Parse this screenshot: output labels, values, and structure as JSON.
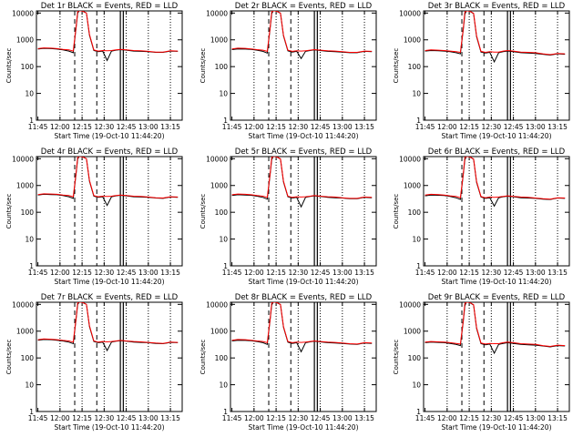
{
  "figure": {
    "panel_titles": [
      "Det 1r BLACK = Events, RED = LLD",
      "Det 2r BLACK = Events, RED = LLD",
      "Det 3r BLACK = Events, RED = LLD",
      "Det 4r BLACK = Events, RED = LLD",
      "Det 5r BLACK = Events, RED = LLD",
      "Det 6r BLACK = Events, RED = LLD",
      "Det 7r BLACK = Events, RED = LLD",
      "Det 8r BLACK = Events, RED = LLD",
      "Det 9r BLACK = Events, RED = LLD"
    ],
    "xlabel": "Start Time (19-Oct-10 11:44:20)",
    "ylabel": "Counts/sec",
    "x_ticks": [
      "11:45",
      "12:00",
      "12:15",
      "12:30",
      "12:45",
      "13:00",
      "13:15"
    ],
    "y_ticks": [
      "1",
      "10",
      "100",
      "1000",
      "10000"
    ]
  },
  "chart_data": {
    "type": "line",
    "layout": "3x3 grid of panels",
    "x_unit": "time (HH:MM)",
    "xlim": [
      "11:44",
      "13:23"
    ],
    "ylim": [
      1,
      12000
    ],
    "y_scale": "log",
    "grid": false,
    "series_colors": {
      "events": "#000000",
      "lld": "#ff0000"
    },
    "dashed_markers": [
      "12:10",
      "12:25"
    ],
    "dotted_markers": [
      "12:00",
      "12:15",
      "12:30",
      "12:45",
      "13:00",
      "13:15"
    ],
    "solid_markers": [
      "12:41",
      "12:43"
    ],
    "panels": [
      {
        "detector": "Det 1r",
        "x": [
          "11:45",
          "11:49",
          "11:54",
          "11:58",
          "12:02",
          "12:06",
          "12:09",
          "12:11",
          "12:12",
          "12:13",
          "12:15",
          "12:18",
          "12:20",
          "12:23",
          "12:26",
          "12:29",
          "12:32",
          "12:35",
          "12:38",
          "12:41",
          "12:45",
          "12:50",
          "12:55",
          "13:00",
          "13:05",
          "13:10",
          "13:15",
          "13:20"
        ],
        "events": [
          450,
          480,
          470,
          450,
          420,
          380,
          330,
          3000,
          10000,
          12000,
          12000,
          10000,
          1500,
          400,
          360,
          380,
          170,
          380,
          410,
          430,
          410,
          380,
          370,
          360,
          340,
          340,
          380,
          370
        ],
        "lld": [
          470,
          500,
          490,
          470,
          440,
          420,
          380,
          3200,
          12000,
          12000,
          12000,
          10000,
          1600,
          420,
          380,
          400,
          390,
          400,
          420,
          440,
          420,
          400,
          390,
          370,
          350,
          350,
          390,
          380
        ]
      },
      {
        "detector": "Det 2r",
        "x": [
          "11:45",
          "11:49",
          "11:54",
          "11:58",
          "12:02",
          "12:06",
          "12:09",
          "12:11",
          "12:12",
          "12:13",
          "12:15",
          "12:18",
          "12:20",
          "12:23",
          "12:26",
          "12:29",
          "12:32",
          "12:35",
          "12:38",
          "12:41",
          "12:45",
          "12:50",
          "12:55",
          "13:00",
          "13:05",
          "13:10",
          "13:15",
          "13:20"
        ],
        "events": [
          430,
          460,
          450,
          440,
          410,
          370,
          320,
          2800,
          9500,
          12000,
          12000,
          9800,
          1400,
          390,
          350,
          370,
          200,
          370,
          400,
          420,
          400,
          370,
          360,
          350,
          330,
          330,
          370,
          360
        ],
        "lld": [
          460,
          490,
          480,
          460,
          430,
          410,
          370,
          3000,
          11500,
          12000,
          12000,
          10000,
          1500,
          410,
          370,
          390,
          380,
          390,
          410,
          430,
          410,
          390,
          380,
          360,
          340,
          340,
          380,
          370
        ]
      },
      {
        "detector": "Det 3r",
        "x": [
          "11:45",
          "11:49",
          "11:54",
          "11:58",
          "12:02",
          "12:06",
          "12:09",
          "12:11",
          "12:12",
          "12:13",
          "12:15",
          "12:18",
          "12:20",
          "12:23",
          "12:26",
          "12:29",
          "12:32",
          "12:35",
          "12:38",
          "12:41",
          "12:45",
          "12:50",
          "12:55",
          "13:00",
          "13:05",
          "13:10",
          "13:15",
          "13:20"
        ],
        "events": [
          380,
          400,
          390,
          380,
          360,
          330,
          300,
          2500,
          9000,
          12000,
          12000,
          9500,
          1300,
          350,
          320,
          340,
          150,
          330,
          360,
          380,
          360,
          330,
          320,
          310,
          290,
          270,
          300,
          290
        ],
        "lld": [
          400,
          420,
          410,
          400,
          380,
          360,
          340,
          2700,
          11000,
          12000,
          12000,
          9800,
          1400,
          370,
          340,
          360,
          350,
          350,
          380,
          400,
          380,
          350,
          340,
          330,
          300,
          280,
          310,
          300
        ]
      },
      {
        "detector": "Det 4r",
        "x": [
          "11:45",
          "11:49",
          "11:54",
          "11:58",
          "12:02",
          "12:06",
          "12:09",
          "12:11",
          "12:12",
          "12:13",
          "12:15",
          "12:18",
          "12:20",
          "12:23",
          "12:26",
          "12:29",
          "12:32",
          "12:35",
          "12:38",
          "12:41",
          "12:45",
          "12:50",
          "12:55",
          "13:00",
          "13:05",
          "13:10",
          "13:15",
          "13:20"
        ],
        "events": [
          440,
          470,
          460,
          450,
          420,
          380,
          330,
          2900,
          9800,
          12000,
          12000,
          10000,
          1450,
          400,
          360,
          380,
          180,
          380,
          410,
          430,
          410,
          380,
          370,
          360,
          340,
          330,
          370,
          360
        ],
        "lld": [
          460,
          490,
          480,
          470,
          440,
          420,
          380,
          3100,
          11800,
          12000,
          12000,
          10000,
          1550,
          420,
          380,
          400,
          390,
          400,
          420,
          440,
          420,
          400,
          390,
          370,
          350,
          340,
          380,
          370
        ]
      },
      {
        "detector": "Det 5r",
        "x": [
          "11:45",
          "11:49",
          "11:54",
          "11:58",
          "12:02",
          "12:06",
          "12:09",
          "12:11",
          "12:12",
          "12:13",
          "12:15",
          "12:18",
          "12:20",
          "12:23",
          "12:26",
          "12:29",
          "12:32",
          "12:35",
          "12:38",
          "12:41",
          "12:45",
          "12:50",
          "12:55",
          "13:00",
          "13:05",
          "13:10",
          "13:15",
          "13:20"
        ],
        "events": [
          420,
          450,
          440,
          430,
          400,
          360,
          310,
          2700,
          9300,
          12000,
          12000,
          9700,
          1350,
          380,
          340,
          360,
          160,
          360,
          390,
          410,
          390,
          360,
          350,
          340,
          320,
          320,
          360,
          350
        ],
        "lld": [
          450,
          480,
          470,
          450,
          420,
          400,
          360,
          2900,
          11300,
          12000,
          12000,
          9900,
          1450,
          400,
          360,
          380,
          370,
          380,
          400,
          420,
          400,
          380,
          370,
          350,
          330,
          330,
          370,
          360
        ]
      },
      {
        "detector": "Det 6r",
        "x": [
          "11:45",
          "11:49",
          "11:54",
          "11:58",
          "12:02",
          "12:06",
          "12:09",
          "12:11",
          "12:12",
          "12:13",
          "12:15",
          "12:18",
          "12:20",
          "12:23",
          "12:26",
          "12:29",
          "12:32",
          "12:35",
          "12:38",
          "12:41",
          "12:45",
          "12:50",
          "12:55",
          "13:00",
          "13:05",
          "13:10",
          "13:15",
          "13:20"
        ],
        "events": [
          410,
          440,
          430,
          420,
          390,
          350,
          300,
          2600,
          9200,
          12000,
          12000,
          9600,
          1300,
          370,
          330,
          350,
          170,
          350,
          380,
          400,
          380,
          350,
          340,
          330,
          310,
          300,
          340,
          330
        ],
        "lld": [
          440,
          470,
          460,
          440,
          410,
          390,
          350,
          2800,
          11200,
          12000,
          12000,
          9800,
          1400,
          390,
          350,
          370,
          360,
          370,
          390,
          410,
          390,
          370,
          360,
          340,
          320,
          310,
          350,
          340
        ]
      },
      {
        "detector": "Det 7r",
        "x": [
          "11:45",
          "11:49",
          "11:54",
          "11:58",
          "12:02",
          "12:06",
          "12:09",
          "12:11",
          "12:12",
          "12:13",
          "12:15",
          "12:18",
          "12:20",
          "12:23",
          "12:26",
          "12:29",
          "12:32",
          "12:35",
          "12:38",
          "12:41",
          "12:45",
          "12:50",
          "12:55",
          "13:00",
          "13:05",
          "13:10",
          "13:15",
          "13:20"
        ],
        "events": [
          460,
          490,
          480,
          460,
          430,
          390,
          340,
          3000,
          10000,
          12000,
          12000,
          10000,
          1500,
          410,
          370,
          390,
          190,
          390,
          420,
          440,
          420,
          390,
          380,
          370,
          350,
          340,
          380,
          370
        ],
        "lld": [
          480,
          510,
          500,
          480,
          450,
          430,
          390,
          3200,
          12000,
          12000,
          12000,
          10000,
          1600,
          430,
          390,
          410,
          400,
          410,
          430,
          450,
          430,
          410,
          400,
          380,
          360,
          350,
          390,
          380
        ]
      },
      {
        "detector": "Det 8r",
        "x": [
          "11:45",
          "11:49",
          "11:54",
          "11:58",
          "12:02",
          "12:06",
          "12:09",
          "12:11",
          "12:12",
          "12:13",
          "12:15",
          "12:18",
          "12:20",
          "12:23",
          "12:26",
          "12:29",
          "12:32",
          "12:35",
          "12:38",
          "12:41",
          "12:45",
          "12:50",
          "12:55",
          "13:00",
          "13:05",
          "13:10",
          "13:15",
          "13:20"
        ],
        "events": [
          430,
          460,
          450,
          440,
          410,
          370,
          320,
          2800,
          9500,
          12000,
          12000,
          9800,
          1400,
          390,
          350,
          370,
          170,
          370,
          400,
          420,
          400,
          370,
          360,
          350,
          330,
          320,
          360,
          350
        ],
        "lld": [
          460,
          490,
          480,
          460,
          430,
          410,
          370,
          3000,
          11500,
          12000,
          12000,
          10000,
          1500,
          410,
          370,
          390,
          380,
          390,
          410,
          430,
          410,
          390,
          380,
          360,
          340,
          330,
          370,
          360
        ]
      },
      {
        "detector": "Det 9r",
        "x": [
          "11:45",
          "11:49",
          "11:54",
          "11:58",
          "12:02",
          "12:06",
          "12:09",
          "12:11",
          "12:12",
          "12:13",
          "12:15",
          "12:18",
          "12:20",
          "12:23",
          "12:26",
          "12:29",
          "12:32",
          "12:35",
          "12:38",
          "12:41",
          "12:45",
          "12:50",
          "12:55",
          "13:00",
          "13:05",
          "13:10",
          "13:15",
          "13:20"
        ],
        "events": [
          370,
          390,
          380,
          370,
          350,
          320,
          290,
          2400,
          8800,
          12000,
          12000,
          9400,
          1250,
          340,
          310,
          330,
          150,
          320,
          350,
          370,
          350,
          320,
          310,
          300,
          280,
          260,
          290,
          280
        ],
        "lld": [
          390,
          410,
          400,
          390,
          370,
          350,
          330,
          2600,
          10800,
          12000,
          12000,
          9700,
          1350,
          360,
          330,
          350,
          340,
          340,
          370,
          390,
          370,
          340,
          330,
          320,
          290,
          270,
          300,
          290
        ]
      }
    ]
  }
}
